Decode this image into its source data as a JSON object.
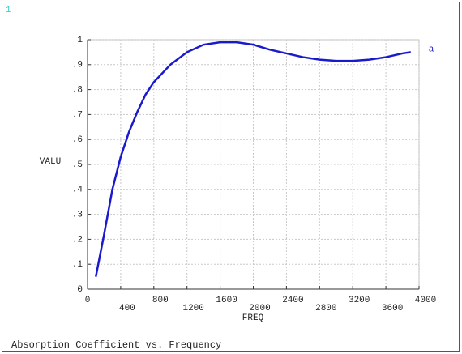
{
  "chart_data": {
    "type": "line",
    "window_number": "1",
    "title": "Absorption Coefficient vs. Frequency",
    "xlabel": "FREQ",
    "ylabel": "VALU",
    "x": [
      100,
      200,
      300,
      400,
      500,
      600,
      700,
      800,
      1000,
      1200,
      1400,
      1600,
      1800,
      2000,
      2200,
      2400,
      2600,
      2800,
      3000,
      3200,
      3400,
      3600,
      3800,
      3900
    ],
    "series": [
      {
        "name": "a",
        "color": "#1a1acc",
        "values": [
          0.05,
          0.22,
          0.4,
          0.53,
          0.63,
          0.71,
          0.78,
          0.83,
          0.9,
          0.95,
          0.98,
          0.99,
          0.99,
          0.98,
          0.96,
          0.945,
          0.93,
          0.92,
          0.915,
          0.915,
          0.92,
          0.93,
          0.945,
          0.95
        ]
      }
    ],
    "xlim": [
      0,
      4000
    ],
    "xticks": [
      0,
      400,
      800,
      1200,
      1600,
      2000,
      2400,
      2800,
      3200,
      3600,
      4000
    ],
    "ylim": [
      0,
      1
    ],
    "yticks": [
      0,
      {
        "value": 0.1,
        "label": ".1"
      },
      {
        "value": 0.2,
        "label": ".2"
      },
      {
        "value": 0.3,
        "label": ".3"
      },
      {
        "value": 0.4,
        "label": ".4"
      },
      {
        "value": 0.5,
        "label": ".5"
      },
      {
        "value": 0.6,
        "label": ".6"
      },
      {
        "value": 0.7,
        "label": ".7"
      },
      {
        "value": 0.8,
        "label": ".8"
      },
      {
        "value": 0.9,
        "label": ".9"
      },
      1
    ],
    "grid": true
  }
}
